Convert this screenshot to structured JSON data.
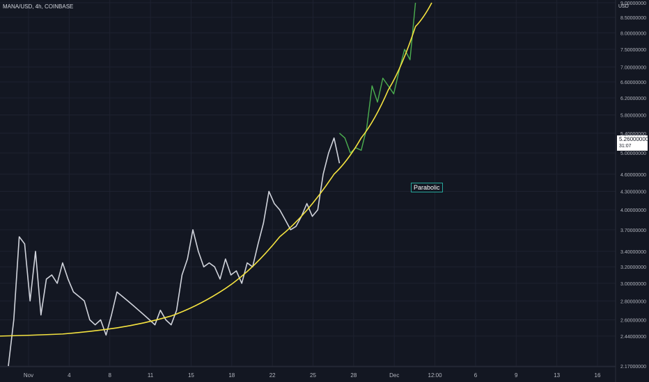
{
  "header": {
    "symbol": "MANA/USD, 4h, COINBASE"
  },
  "axis": {
    "currency": "USD"
  },
  "last_price": {
    "value": "5.26000000",
    "countdown": "31:07"
  },
  "annotation": {
    "text": "Parabolic"
  },
  "colors": {
    "background": "#131722",
    "price_line": "#d1d4dc",
    "recent_line": "#4caf50",
    "curve": "#f5e340",
    "grid": "#1e2230"
  },
  "chart_data": {
    "type": "line",
    "title": "MANA/USD, 4h, COINBASE",
    "x_ticks": [
      "Nov",
      "4",
      "8",
      "11",
      "15",
      "18",
      "22",
      "25",
      "28",
      "Dec",
      "12:00",
      "6",
      "9",
      "13",
      "16"
    ],
    "y_ticks": [
      "9.00000000",
      "8.50000000",
      "8.00000000",
      "7.50000000",
      "7.00000000",
      "6.60000000",
      "6.20000000",
      "5.80000000",
      "5.40000000",
      "5.00000000",
      "4.60000000",
      "4.30000000",
      "4.00000000",
      "3.70000000",
      "3.40000000",
      "3.20000000",
      "3.00000000",
      "2.80000000",
      "2.60000000",
      "2.44000000",
      "2.17000000"
    ],
    "ylim": [
      2.17,
      9.0
    ],
    "y_scale": "log",
    "series": [
      {
        "style": "price-white",
        "points": [
          [
            0,
            2.17
          ],
          [
            1,
            2.6
          ],
          [
            2,
            3.6
          ],
          [
            3,
            3.5
          ],
          [
            4,
            2.8
          ],
          [
            5,
            3.4
          ],
          [
            6,
            2.65
          ],
          [
            7,
            3.05
          ],
          [
            8,
            3.1
          ],
          [
            9,
            3.0
          ],
          [
            10,
            3.25
          ],
          [
            11,
            3.05
          ],
          [
            12,
            2.9
          ],
          [
            13,
            2.85
          ],
          [
            14,
            2.8
          ],
          [
            15,
            2.6
          ],
          [
            16,
            2.55
          ],
          [
            17,
            2.6
          ],
          [
            18,
            2.45
          ],
          [
            19,
            2.65
          ],
          [
            20,
            2.9
          ],
          [
            21,
            2.85
          ],
          [
            22,
            2.8
          ],
          [
            23,
            2.75
          ],
          [
            24,
            2.7
          ],
          [
            25,
            2.65
          ],
          [
            26,
            2.6
          ],
          [
            27,
            2.55
          ],
          [
            28,
            2.7
          ],
          [
            29,
            2.6
          ],
          [
            30,
            2.55
          ],
          [
            31,
            2.7
          ],
          [
            32,
            3.1
          ],
          [
            33,
            3.3
          ],
          [
            34,
            3.7
          ],
          [
            35,
            3.4
          ],
          [
            36,
            3.2
          ],
          [
            37,
            3.25
          ],
          [
            38,
            3.2
          ],
          [
            39,
            3.05
          ],
          [
            40,
            3.3
          ],
          [
            41,
            3.1
          ],
          [
            42,
            3.15
          ],
          [
            43,
            3.0
          ],
          [
            44,
            3.25
          ],
          [
            45,
            3.2
          ],
          [
            46,
            3.5
          ],
          [
            47,
            3.8
          ],
          [
            48,
            4.3
          ],
          [
            49,
            4.1
          ],
          [
            50,
            4.0
          ],
          [
            51,
            3.85
          ],
          [
            52,
            3.7
          ],
          [
            53,
            3.75
          ],
          [
            54,
            3.9
          ],
          [
            55,
            4.1
          ],
          [
            56,
            3.9
          ],
          [
            57,
            4.0
          ],
          [
            58,
            4.6
          ],
          [
            59,
            5.0
          ],
          [
            60,
            5.3
          ],
          [
            61,
            4.8
          ]
        ]
      },
      {
        "style": "price-green",
        "points": [
          [
            61,
            5.4
          ],
          [
            62,
            5.3
          ],
          [
            63,
            5.0
          ],
          [
            64,
            5.1
          ],
          [
            65,
            5.05
          ],
          [
            66,
            5.5
          ],
          [
            67,
            6.5
          ],
          [
            68,
            6.1
          ],
          [
            69,
            6.7
          ],
          [
            70,
            6.5
          ],
          [
            71,
            6.3
          ],
          [
            72,
            6.9
          ],
          [
            73,
            7.5
          ],
          [
            74,
            7.2
          ],
          [
            75,
            9.0
          ]
        ]
      },
      {
        "style": "parabolic-curve",
        "points": [
          [
            0,
            2.44
          ],
          [
            10,
            2.46
          ],
          [
            20,
            2.52
          ],
          [
            30,
            2.64
          ],
          [
            40,
            2.94
          ],
          [
            50,
            3.6
          ],
          [
            60,
            4.6
          ],
          [
            65,
            5.3
          ],
          [
            70,
            6.4
          ],
          [
            75,
            8.2
          ],
          [
            78,
            9.0
          ]
        ]
      }
    ]
  }
}
